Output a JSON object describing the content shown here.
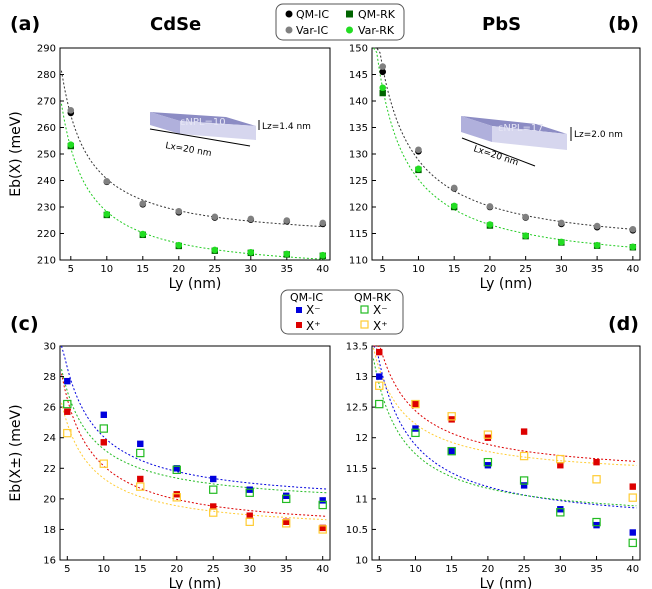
{
  "figure": {
    "titles": {
      "left": "CdSe",
      "right": "PbS"
    },
    "panel_labels": {
      "a": "(a)",
      "b": "(b)",
      "c": "(c)",
      "d": "(d)"
    },
    "legend_top": {
      "qm_ic": "QM-IC",
      "var_ic": "Var-IC",
      "qm_rk": "QM-RK",
      "var_rk": "Var-RK"
    },
    "legend_mid": {
      "hdr_ic": "QM-IC",
      "hdr_rk": "QM-RK",
      "xm_ic": "X⁻",
      "xp_ic": "X⁺",
      "xm_rk": "X⁻",
      "xp_rk": "X⁺"
    },
    "insets": {
      "a": {
        "eps": "εNPL=10",
        "lz": "Lz=1.4 nm",
        "lx": "Lx=20 nm"
      },
      "b": {
        "eps": "εNPL=17",
        "lz": "Lz=2.0 nm",
        "lx": "Lx=20 nm"
      }
    },
    "colors": {
      "qm_ic": "#000000",
      "var_ic": "#808080",
      "qm_rk": "#006400",
      "var_rk": "#22dd22",
      "fit_ic": "#333333",
      "fit_rk": "#22cc22",
      "xm_ic": "#0000dd",
      "xp_ic": "#dd0000",
      "xm_rk": "#22bb22",
      "xp_rk": "#ffcc33"
    }
  },
  "chart_data": [
    {
      "panel": "a",
      "type": "scatter",
      "xlabel": "Ly (nm)",
      "ylabel": "Eb(X) (meV)",
      "xlim": [
        3.5,
        41
      ],
      "ylim": [
        210,
        290
      ],
      "xticks": [
        5,
        10,
        15,
        20,
        25,
        30,
        35,
        40
      ],
      "yticks": [
        210,
        220,
        230,
        240,
        250,
        260,
        270,
        280,
        290
      ],
      "x": [
        5,
        10,
        15,
        20,
        25,
        30,
        35,
        40
      ],
      "series": [
        {
          "name": "QM-IC",
          "values": [
            265.5,
            239.5,
            231,
            228,
            226,
            225.2,
            224.6,
            223.6
          ]
        },
        {
          "name": "Var-IC",
          "values": [
            266.5,
            239.7,
            231.3,
            228.4,
            226.3,
            225.5,
            224.9,
            224.0
          ]
        },
        {
          "name": "QM-RK",
          "values": [
            253,
            227,
            219.5,
            215.3,
            213.5,
            212.7,
            212.1,
            211.6
          ]
        },
        {
          "name": "Var-RK",
          "values": [
            253.5,
            227.3,
            219.8,
            215.6,
            213.8,
            212.9,
            212.3,
            211.8
          ]
        }
      ]
    },
    {
      "panel": "b",
      "type": "scatter",
      "xlabel": "Ly (nm)",
      "ylabel": "",
      "xlim": [
        3.5,
        41
      ],
      "ylim": [
        110,
        150
      ],
      "xticks": [
        5,
        10,
        15,
        20,
        25,
        30,
        35,
        40
      ],
      "yticks": [
        110,
        115,
        120,
        125,
        130,
        135,
        140,
        145,
        150
      ],
      "x": [
        5,
        10,
        15,
        20,
        25,
        30,
        35,
        40
      ],
      "series": [
        {
          "name": "QM-IC",
          "values": [
            145.5,
            130.5,
            123.5,
            120,
            118,
            116.8,
            116.2,
            115.6
          ]
        },
        {
          "name": "Var-IC",
          "values": [
            146.5,
            130.8,
            123.6,
            120.1,
            118.1,
            117,
            116.4,
            115.8
          ]
        },
        {
          "name": "QM-RK",
          "values": [
            141.5,
            127,
            120,
            116.5,
            114.5,
            113.3,
            112.7,
            112.4
          ]
        },
        {
          "name": "Var-RK",
          "values": [
            142.5,
            127.2,
            120.2,
            116.7,
            114.6,
            113.4,
            112.8,
            112.5
          ]
        }
      ]
    },
    {
      "panel": "c",
      "type": "scatter",
      "xlabel": "Ly (nm)",
      "ylabel": "Eb(X±) (meV)",
      "xlim": [
        4,
        41
      ],
      "ylim": [
        16,
        30
      ],
      "xticks": [
        5,
        10,
        15,
        20,
        25,
        30,
        35,
        40
      ],
      "yticks": [
        16,
        18,
        20,
        22,
        24,
        26,
        28,
        30
      ],
      "x": [
        5,
        10,
        15,
        20,
        25,
        30,
        35,
        40
      ],
      "series": [
        {
          "name": "X- QM-IC",
          "values": [
            27.7,
            25.5,
            23.6,
            22.0,
            21.3,
            20.6,
            20.2,
            19.9
          ]
        },
        {
          "name": "X+ QM-IC",
          "values": [
            25.7,
            23.7,
            21.3,
            20.3,
            19.5,
            18.9,
            18.5,
            18.1
          ]
        },
        {
          "name": "X- QM-RK",
          "values": [
            26.2,
            24.6,
            23.0,
            21.9,
            20.6,
            20.4,
            20.0,
            19.6
          ]
        },
        {
          "name": "X+ QM-RK",
          "values": [
            24.3,
            22.3,
            20.8,
            20.1,
            19.1,
            18.5,
            18.4,
            18.0
          ]
        }
      ]
    },
    {
      "panel": "d",
      "type": "scatter",
      "xlabel": "Ly (nm)",
      "ylabel": "",
      "xlim": [
        4,
        41
      ],
      "ylim": [
        10,
        13.5
      ],
      "xticks": [
        5,
        10,
        15,
        20,
        25,
        30,
        35,
        40
      ],
      "yticks": [
        10,
        10.5,
        11,
        11.5,
        12,
        12.5,
        13,
        13.5
      ],
      "x": [
        5,
        10,
        15,
        20,
        25,
        30,
        35,
        40
      ],
      "series": [
        {
          "name": "X- QM-IC",
          "values": [
            13.0,
            12.15,
            11.78,
            11.55,
            11.22,
            10.83,
            10.57,
            10.45
          ]
        },
        {
          "name": "X+ QM-IC",
          "values": [
            13.4,
            12.55,
            12.3,
            12.0,
            12.1,
            11.55,
            11.6,
            11.2
          ]
        },
        {
          "name": "X- QM-RK",
          "values": [
            12.55,
            12.08,
            11.78,
            11.6,
            11.3,
            10.78,
            10.62,
            10.28
          ]
        },
        {
          "name": "X+ QM-RK",
          "values": [
            12.85,
            12.55,
            12.35,
            12.05,
            11.7,
            11.65,
            11.32,
            11.02
          ]
        }
      ]
    }
  ]
}
